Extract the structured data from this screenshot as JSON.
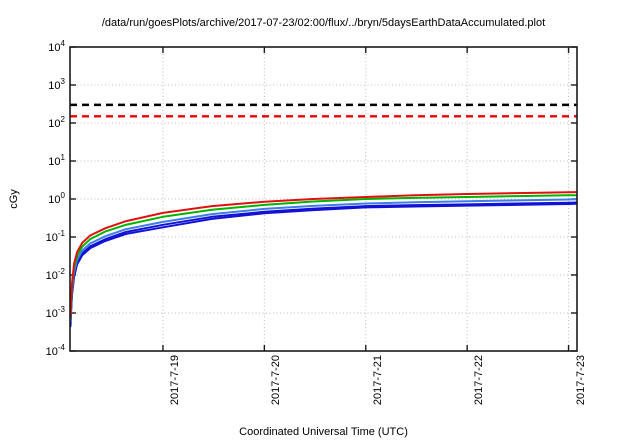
{
  "title": "/data/run/goesPlots/archive/2017-07-23/02:00/flux/../bryn/5daysEarthDataAccumulated.plot",
  "chart_data": {
    "type": "line",
    "title": "/data/run/goesPlots/archive/2017-07-23/02:00/flux/../bryn/5daysEarthDataAccumulated.plot",
    "xlabel": "Coordinated Universal Time (UTC)",
    "ylabel": "cGy",
    "y_scale": "log",
    "ylim": [
      0.0001,
      10000
    ],
    "y_tick_base": "10",
    "y_tick_exponents": [
      4,
      3,
      2,
      1,
      0,
      -1,
      -2,
      -3,
      -4
    ],
    "x_range_days": 5,
    "x_start": "2017-07-18 02:00 UTC",
    "x_end": "2017-07-23 02:00 UTC",
    "x_ticks": [
      {
        "label": "2017-7-19",
        "t": 0.9167
      },
      {
        "label": "2017-7-20",
        "t": 1.9167
      },
      {
        "label": "2017-7-21",
        "t": 2.9167
      },
      {
        "label": "2017-7-22",
        "t": 3.9167
      },
      {
        "label": "2017-7-23",
        "t": 4.9167
      }
    ],
    "grid": "dotted",
    "legend": "none",
    "thresholds": [
      {
        "name": "dose-limit-upper",
        "value_cGy": 300,
        "color": "#000000",
        "style": "dashed"
      },
      {
        "name": "dose-limit-lower",
        "value_cGy": 150,
        "color": "#ee0000",
        "style": "dashed"
      }
    ],
    "series": [
      {
        "name": "accumulated-dose-blue-2",
        "color": "#1212d6",
        "width": 2,
        "points": [
          [
            0.005,
            0.00045
          ],
          [
            0.01,
            0.001
          ],
          [
            0.02,
            0.003
          ],
          [
            0.04,
            0.009
          ],
          [
            0.07,
            0.019
          ],
          [
            0.12,
            0.033
          ],
          [
            0.2,
            0.051
          ],
          [
            0.35,
            0.079
          ],
          [
            0.55,
            0.12
          ],
          [
            0.9167,
            0.18
          ],
          [
            1.4,
            0.3
          ],
          [
            1.9167,
            0.42
          ],
          [
            2.4,
            0.51
          ],
          [
            2.9167,
            0.6
          ],
          [
            3.4,
            0.635
          ],
          [
            3.9167,
            0.67
          ],
          [
            4.4,
            0.7
          ],
          [
            4.9167,
            0.74
          ],
          [
            5.0,
            0.75
          ]
        ]
      },
      {
        "name": "accumulated-dose-blue-1",
        "color": "#1212d6",
        "width": 2,
        "points": [
          [
            0.005,
            0.0005
          ],
          [
            0.01,
            0.0011
          ],
          [
            0.02,
            0.0033
          ],
          [
            0.04,
            0.01
          ],
          [
            0.07,
            0.021
          ],
          [
            0.12,
            0.037
          ],
          [
            0.2,
            0.057
          ],
          [
            0.35,
            0.088
          ],
          [
            0.55,
            0.135
          ],
          [
            0.9167,
            0.21
          ],
          [
            1.4,
            0.34
          ],
          [
            1.9167,
            0.46
          ],
          [
            2.4,
            0.56
          ],
          [
            2.9167,
            0.65
          ],
          [
            3.4,
            0.69
          ],
          [
            3.9167,
            0.72
          ],
          [
            4.4,
            0.76
          ],
          [
            4.9167,
            0.8
          ],
          [
            5.0,
            0.81
          ]
        ]
      },
      {
        "name": "accumulated-dose-skyblue",
        "color": "#3f7ce8",
        "width": 2,
        "points": [
          [
            0.005,
            0.0006
          ],
          [
            0.01,
            0.0013
          ],
          [
            0.02,
            0.004
          ],
          [
            0.04,
            0.012
          ],
          [
            0.07,
            0.025
          ],
          [
            0.12,
            0.044
          ],
          [
            0.2,
            0.068
          ],
          [
            0.35,
            0.105
          ],
          [
            0.55,
            0.16
          ],
          [
            0.9167,
            0.25
          ],
          [
            1.4,
            0.4
          ],
          [
            1.9167,
            0.55
          ],
          [
            2.4,
            0.66
          ],
          [
            2.9167,
            0.76
          ],
          [
            3.4,
            0.82
          ],
          [
            3.9167,
            0.87
          ],
          [
            4.4,
            0.92
          ],
          [
            4.9167,
            0.97
          ],
          [
            5.0,
            0.98
          ]
        ]
      },
      {
        "name": "accumulated-dose-green",
        "color": "#00b400",
        "width": 2,
        "points": [
          [
            0.005,
            0.0007
          ],
          [
            0.01,
            0.0016
          ],
          [
            0.02,
            0.005
          ],
          [
            0.04,
            0.016
          ],
          [
            0.07,
            0.032
          ],
          [
            0.12,
            0.056
          ],
          [
            0.2,
            0.088
          ],
          [
            0.35,
            0.14
          ],
          [
            0.55,
            0.21
          ],
          [
            0.9167,
            0.34
          ],
          [
            1.4,
            0.52
          ],
          [
            1.9167,
            0.7
          ],
          [
            2.4,
            0.86
          ],
          [
            2.9167,
            1.0
          ],
          [
            3.4,
            1.07
          ],
          [
            3.9167,
            1.13
          ],
          [
            4.4,
            1.19
          ],
          [
            4.9167,
            1.25
          ],
          [
            5.0,
            1.26
          ]
        ]
      },
      {
        "name": "accumulated-dose-red",
        "color": "#e01010",
        "width": 2,
        "points": [
          [
            0.005,
            0.0008
          ],
          [
            0.01,
            0.002
          ],
          [
            0.02,
            0.006
          ],
          [
            0.04,
            0.02
          ],
          [
            0.07,
            0.04
          ],
          [
            0.12,
            0.07
          ],
          [
            0.2,
            0.11
          ],
          [
            0.35,
            0.17
          ],
          [
            0.55,
            0.26
          ],
          [
            0.9167,
            0.43
          ],
          [
            1.4,
            0.65
          ],
          [
            1.9167,
            0.85
          ],
          [
            2.4,
            1.0
          ],
          [
            2.9167,
            1.13
          ],
          [
            3.4,
            1.25
          ],
          [
            3.9167,
            1.35
          ],
          [
            4.4,
            1.43
          ],
          [
            4.9167,
            1.5
          ],
          [
            5.0,
            1.52
          ]
        ]
      }
    ],
    "colors": {
      "grid": "#bcbcbc",
      "border": "#1a1a1a",
      "background": "#ffffff"
    }
  }
}
